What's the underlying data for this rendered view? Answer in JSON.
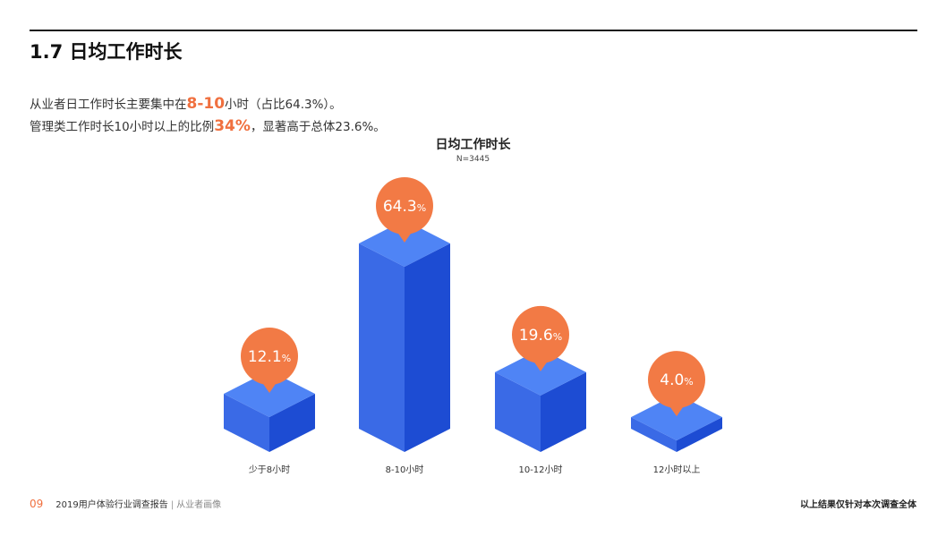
{
  "page": {
    "title": "1.7 日均工作时长",
    "summary_line1_pre": "从业者日工作时长主要集中在",
    "summary_line1_hl": "8-10",
    "summary_line1_post": "小时（占比64.3%）。",
    "summary_line2_pre": "管理类工作时长10小时以上的比例",
    "summary_line2_hl": "34%",
    "summary_line2_post": "，显著高于总体23.6%。"
  },
  "footer": {
    "page_number": "09",
    "report_title": "2019用户体验行业调查报告",
    "separator": "|",
    "section": "从业者画像",
    "note": "以上结果仅针对本次调查全体"
  },
  "colors": {
    "accent": "#f27a45",
    "bar_top": "#4f84f5",
    "bar_left": "#3a6ae6",
    "bar_right": "#1d4cd3"
  },
  "chart_data": {
    "type": "bar",
    "title": "日均工作时长",
    "subtitle": "N=3445",
    "categories": [
      "少于8小时",
      "8-10小时",
      "10-12小时",
      "12小时以上"
    ],
    "values": [
      12.1,
      64.3,
      19.6,
      4.0
    ],
    "value_labels": [
      "12.1",
      "64.3",
      "19.6",
      "4.0"
    ],
    "unit": "%",
    "ylim": [
      0,
      70
    ]
  }
}
